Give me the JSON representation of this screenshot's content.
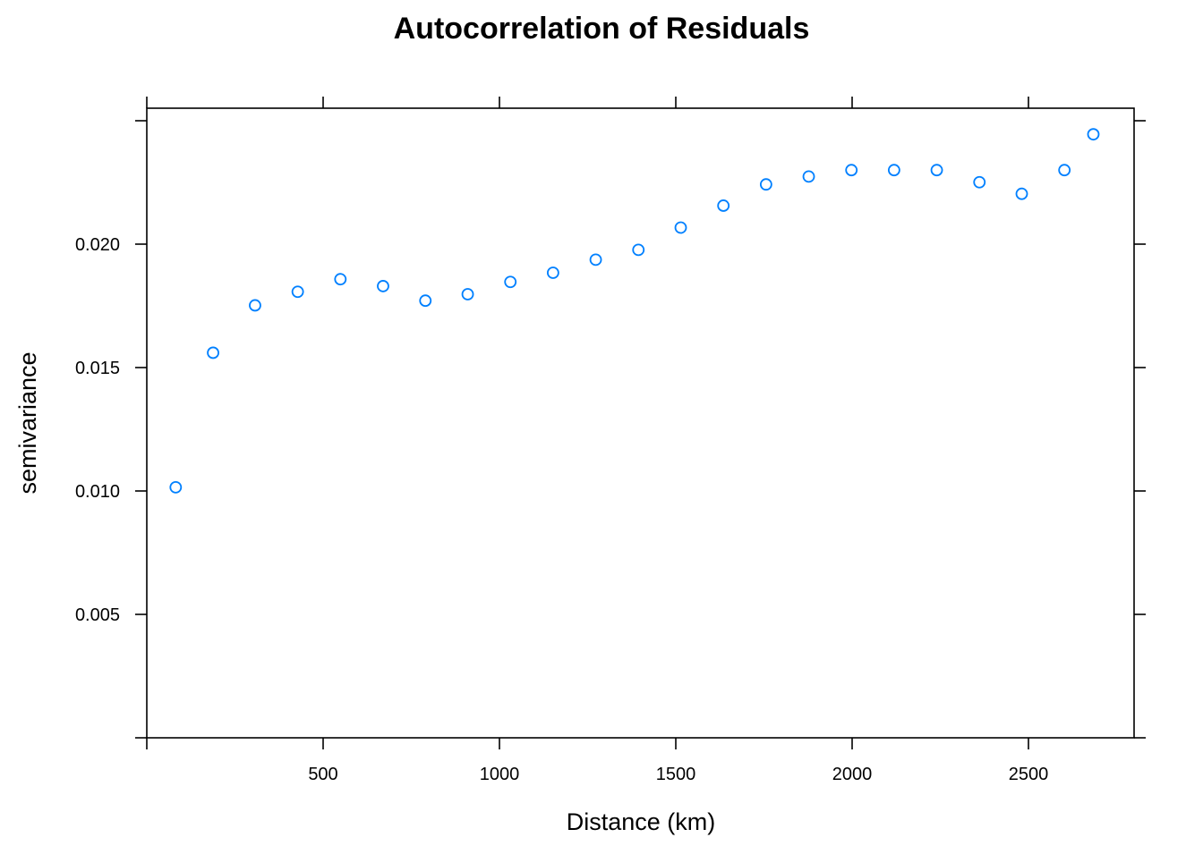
{
  "chart_data": {
    "type": "scatter",
    "title": "Autocorrelation of Residuals",
    "xlabel": "Distance (km)",
    "ylabel": "semivariance",
    "xlim": [
      0,
      2800
    ],
    "ylim": [
      0,
      0.0255
    ],
    "xticks": [
      {
        "value": 0,
        "label": ""
      },
      {
        "value": 500,
        "label": "500"
      },
      {
        "value": 1000,
        "label": "1000"
      },
      {
        "value": 1500,
        "label": "1500"
      },
      {
        "value": 2000,
        "label": "2000"
      },
      {
        "value": 2500,
        "label": "2500"
      }
    ],
    "yticks": [
      {
        "value": 0,
        "label": ""
      },
      {
        "value": 0.005,
        "label": "0.005"
      },
      {
        "value": 0.01,
        "label": "0.010"
      },
      {
        "value": 0.015,
        "label": "0.015"
      },
      {
        "value": 0.02,
        "label": "0.020"
      },
      {
        "value": 0.025,
        "label": ""
      }
    ],
    "grid": false,
    "marker_color": "#0080ff",
    "points": [
      {
        "x": 82,
        "y": 0.01015
      },
      {
        "x": 188,
        "y": 0.0156
      },
      {
        "x": 307,
        "y": 0.01752
      },
      {
        "x": 428,
        "y": 0.01807
      },
      {
        "x": 549,
        "y": 0.01858
      },
      {
        "x": 670,
        "y": 0.0183
      },
      {
        "x": 790,
        "y": 0.01771
      },
      {
        "x": 910,
        "y": 0.01797
      },
      {
        "x": 1031,
        "y": 0.01847
      },
      {
        "x": 1152,
        "y": 0.01884
      },
      {
        "x": 1273,
        "y": 0.01937
      },
      {
        "x": 1394,
        "y": 0.01977
      },
      {
        "x": 1514,
        "y": 0.02067
      },
      {
        "x": 1635,
        "y": 0.02156
      },
      {
        "x": 1756,
        "y": 0.02242
      },
      {
        "x": 1877,
        "y": 0.02274
      },
      {
        "x": 1998,
        "y": 0.023
      },
      {
        "x": 2119,
        "y": 0.023
      },
      {
        "x": 2240,
        "y": 0.023
      },
      {
        "x": 2361,
        "y": 0.02251
      },
      {
        "x": 2481,
        "y": 0.02204
      },
      {
        "x": 2602,
        "y": 0.023
      },
      {
        "x": 2684,
        "y": 0.02445
      }
    ]
  }
}
